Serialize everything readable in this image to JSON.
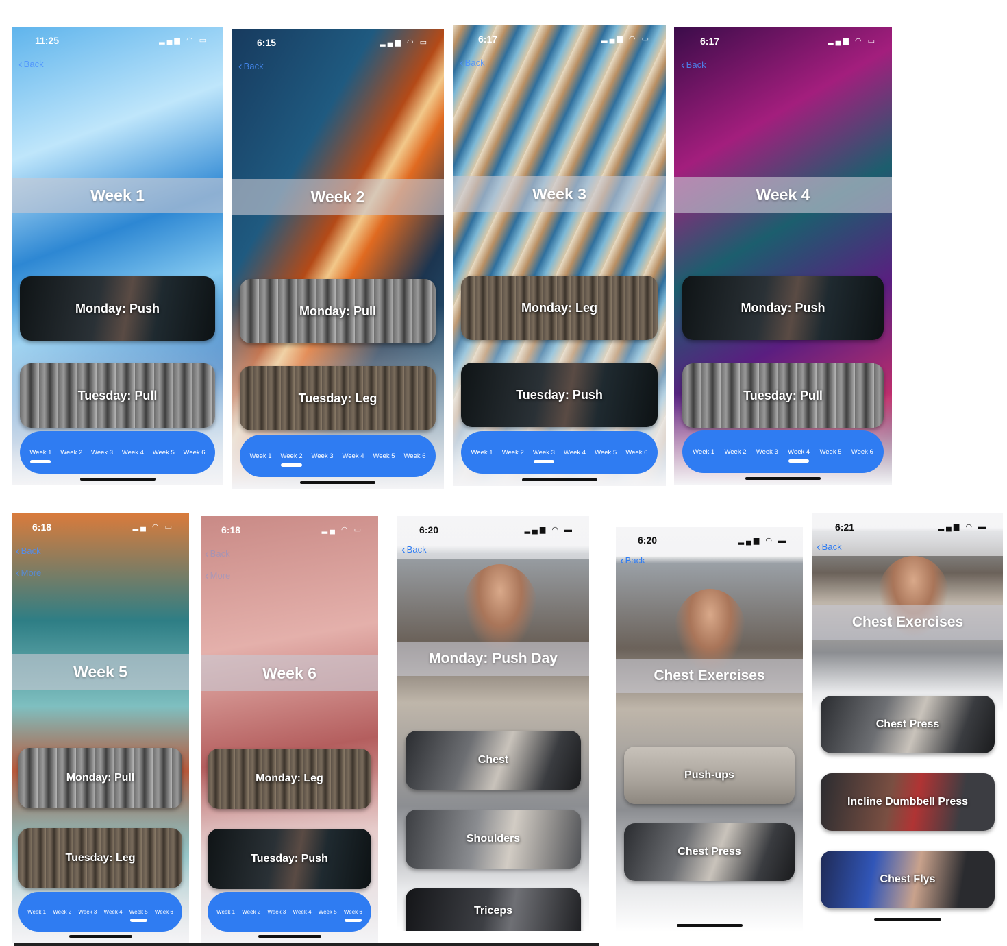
{
  "tabs": [
    "Week 1",
    "Week 2",
    "Week 3",
    "Week 4",
    "Week 5",
    "Week 6"
  ],
  "screens": {
    "w1": {
      "time": "11:25",
      "back": "Back",
      "title": "Week 1",
      "cards": [
        "Monday: Push",
        "Tuesday: Pull"
      ],
      "active_tab": 0
    },
    "w2": {
      "time": "6:15",
      "back": "Back",
      "title": "Week 2",
      "cards": [
        "Monday: Pull",
        "Tuesday: Leg"
      ],
      "active_tab": 1
    },
    "w3": {
      "time": "6:17",
      "back": "Back",
      "title": "Week 3",
      "cards": [
        "Monday: Leg",
        "Tuesday: Push"
      ],
      "active_tab": 2
    },
    "w4": {
      "time": "6:17",
      "back": "Back",
      "title": "Week 4",
      "cards": [
        "Monday: Push",
        "Tuesday: Pull"
      ],
      "active_tab": 3
    },
    "w5": {
      "time": "6:18",
      "back": "Back",
      "more": "More",
      "title": "Week 5",
      "cards": [
        "Monday: Pull",
        "Tuesday: Leg"
      ],
      "active_tab": 4
    },
    "w6": {
      "time": "6:18",
      "back": "Back",
      "more": "More",
      "title": "Week 6",
      "cards": [
        "Monday: Leg",
        "Tuesday: Push"
      ],
      "active_tab": 5
    },
    "day": {
      "time": "6:20",
      "back": "Back",
      "title": "Monday: Push Day",
      "cards": [
        "Chest",
        "Shoulders",
        "Triceps"
      ]
    },
    "chest1": {
      "time": "6:20",
      "back": "Back",
      "title": "Chest Exercises",
      "cards": [
        "Push-ups",
        "Chest Press"
      ]
    },
    "chest2": {
      "time": "6:21",
      "back": "Back",
      "title": "Chest Exercises",
      "cards": [
        "Chest Press",
        "Incline Dumbbell Press",
        "Chest Flys"
      ]
    }
  },
  "icons": {
    "status": "signal-wifi-battery-icons",
    "back": "chevron-left-icon"
  },
  "colors": {
    "tabbar": "#2f7cf2",
    "back_link": "#4a90ff"
  }
}
